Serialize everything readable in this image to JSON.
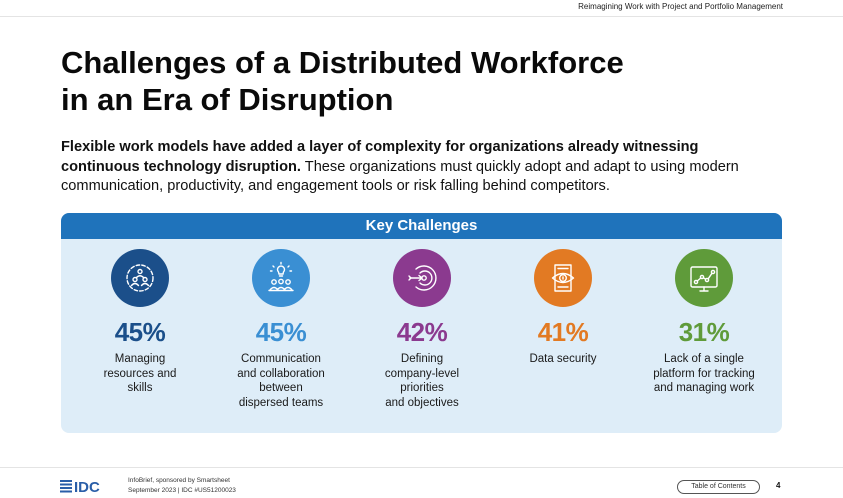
{
  "header": {
    "running_title": "Reimagining Work with Project and Portfolio Management"
  },
  "title": {
    "line1": "Challenges of a Distributed Workforce",
    "line2": "in an Era of Disruption"
  },
  "intro": {
    "bold": "Flexible work models have added a layer of complexity for organizations already witnessing continuous technology disruption.",
    "rest": " These organizations must quickly adopt and adapt to using modern communication, productivity, and engagement tools or risk falling behind competitors."
  },
  "panel": {
    "heading": "Key Challenges",
    "items": [
      {
        "percent": "45%",
        "lines": [
          "Managing",
          "resources and",
          "skills"
        ],
        "icon": "people-gear-icon",
        "color": "#1b4f8a"
      },
      {
        "percent": "45%",
        "lines": [
          "Communication",
          "and collaboration",
          "between",
          "dispersed teams"
        ],
        "icon": "idea-team-icon",
        "color": "#3a8fd3"
      },
      {
        "percent": "42%",
        "lines": [
          "Defining",
          "company-level",
          "priorities",
          "and objectives"
        ],
        "icon": "target-icon",
        "color": "#8b3a8f"
      },
      {
        "percent": "41%",
        "lines": [
          "Data security"
        ],
        "icon": "secure-document-icon",
        "color": "#e27a23"
      },
      {
        "percent": "31%",
        "lines": [
          "Lack of a single",
          "platform for tracking",
          "and managing work"
        ],
        "icon": "tracking-chart-icon",
        "color": "#5f9b3a"
      }
    ]
  },
  "footer": {
    "logo": "IDC",
    "line1": "InfoBrief, sponsored by Smartsheet",
    "line2": "September 2023  |  IDC #US51200023",
    "toc": "Table of Contents",
    "page": "4"
  }
}
